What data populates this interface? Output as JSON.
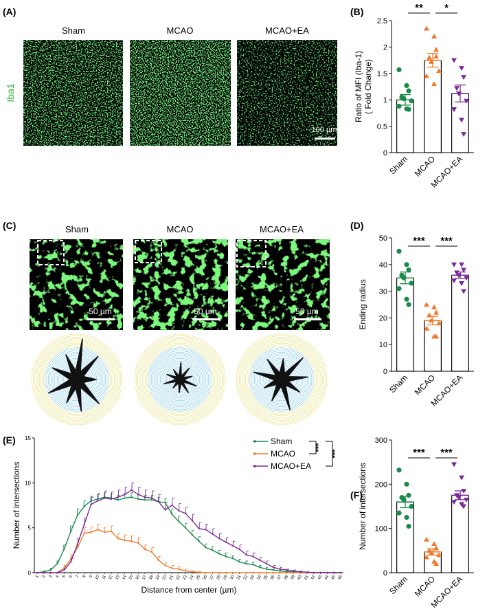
{
  "panels": {
    "A": {
      "label": "(A)",
      "columns": [
        "Sham",
        "MCAO",
        "MCAO+EA"
      ],
      "stain_label": "Iba1",
      "scale_bar": "100 µm"
    },
    "C": {
      "label": "(C)",
      "columns": [
        "Sham",
        "MCAO",
        "MCAO+EA"
      ],
      "scale_bar": "50 µm"
    }
  },
  "colors": {
    "sham": "#1a8a4a",
    "mcao": "#f07a2a",
    "mcao_ea": "#7a2a9a",
    "stain": "#2fd03a",
    "ring_outer": "#e6e07a",
    "ring_inner": "#7fc8e8"
  },
  "chart_data": [
    {
      "panel": "B",
      "label": "(B)",
      "type": "bar",
      "categories": [
        "Sham",
        "MCAO",
        "MCAO+EA"
      ],
      "values": [
        1.0,
        1.75,
        1.12
      ],
      "errors": [
        0.1,
        0.13,
        0.16
      ],
      "points": [
        [
          1.57,
          1.27,
          1.17,
          1.05,
          1.02,
          0.98,
          0.88,
          0.83,
          0.82
        ],
        [
          2.35,
          2.2,
          1.95,
          1.8,
          1.72,
          1.55,
          1.45,
          1.3,
          1.82
        ],
        [
          1.75,
          1.6,
          1.43,
          1.22,
          1.12,
          0.98,
          0.82,
          0.62,
          0.35
        ]
      ],
      "ylabel": "Ratio of MFI (Iba-1)\n( Fold Change)",
      "ylim": [
        0,
        2.5
      ],
      "yticks": [
        0,
        0.5,
        1.0,
        1.5,
        2.0,
        2.5
      ],
      "significance": [
        {
          "between": [
            "Sham",
            "MCAO"
          ],
          "text": "**"
        },
        {
          "between": [
            "MCAO",
            "MCAO+EA"
          ],
          "text": "*"
        }
      ]
    },
    {
      "panel": "D",
      "label": "(D)",
      "type": "bar",
      "categories": [
        "Sham",
        "MCAO",
        "MCAO+EA"
      ],
      "values": [
        35,
        19,
        36
      ],
      "errors": [
        2.2,
        1.6,
        1.2
      ],
      "points": [
        [
          45,
          40,
          38,
          36,
          35,
          33,
          31,
          27,
          25
        ],
        [
          25,
          24,
          22,
          21,
          19,
          18,
          16,
          13,
          13
        ],
        [
          40,
          40,
          38,
          37,
          36,
          35,
          34,
          33,
          30
        ]
      ],
      "ylabel": "Ending radius",
      "ylim": [
        0,
        50
      ],
      "yticks": [
        0,
        10,
        20,
        30,
        40,
        50
      ],
      "significance": [
        {
          "between": [
            "Sham",
            "MCAO"
          ],
          "text": "***"
        },
        {
          "between": [
            "MCAO",
            "MCAO+EA"
          ],
          "text": "***"
        }
      ]
    },
    {
      "panel": "E",
      "label": "(E)",
      "type": "line",
      "x": [
        1,
        2,
        3,
        4,
        5,
        6,
        7,
        8,
        9,
        10,
        11,
        12,
        13,
        14,
        15,
        16,
        17,
        18,
        19,
        20,
        21,
        22,
        23,
        24,
        25,
        26,
        27,
        28,
        29,
        30,
        31,
        32,
        33,
        34,
        35,
        36,
        37,
        38,
        39,
        40,
        41,
        42,
        43,
        44,
        45,
        46
      ],
      "series": [
        {
          "name": "Sham",
          "values": [
            0,
            0.1,
            0.3,
            1.0,
            2.6,
            4.6,
            6.4,
            7.4,
            8.0,
            8.2,
            8.4,
            8.3,
            8.1,
            8.3,
            8.4,
            8.2,
            8.1,
            8.1,
            7.9,
            7.8,
            6.5,
            5.7,
            5.0,
            4.2,
            3.5,
            2.8,
            2.5,
            2.1,
            1.8,
            1.6,
            1.2,
            1.0,
            0.9,
            0.6,
            0.4,
            0.3,
            0.2,
            0.1,
            0.1,
            0.05,
            0,
            0,
            0,
            0,
            0,
            0
          ],
          "errors": [
            0,
            0.1,
            0.2,
            0.3,
            0.5,
            0.6,
            0.7,
            0.6,
            0.5,
            0.5,
            0.5,
            0.5,
            0.5,
            0.5,
            0.5,
            0.5,
            0.5,
            0.5,
            0.5,
            0.5,
            0.6,
            0.6,
            0.5,
            0.5,
            0.5,
            0.4,
            0.4,
            0.4,
            0.4,
            0.3,
            0.3,
            0.3,
            0.3,
            0.2,
            0.2,
            0.1,
            0.1,
            0.1,
            0.1,
            0.05,
            0,
            0,
            0,
            0,
            0,
            0
          ]
        },
        {
          "name": "MCAO",
          "values": [
            0,
            0,
            0,
            0,
            0.5,
            1.5,
            2.8,
            4.4,
            4.5,
            4.8,
            4.5,
            4.6,
            3.8,
            3.6,
            3.5,
            3.3,
            2.6,
            2.3,
            1.4,
            0.8,
            0.5,
            0.4,
            0.2,
            0.1,
            0.05,
            0,
            0,
            0,
            0,
            0,
            0,
            0,
            0,
            0,
            0,
            0,
            0,
            0,
            0,
            0,
            0,
            0,
            0,
            0,
            0,
            0
          ],
          "errors": [
            0,
            0,
            0,
            0,
            0.3,
            0.5,
            0.6,
            0.6,
            0.6,
            0.6,
            0.6,
            0.6,
            0.6,
            0.6,
            0.6,
            0.6,
            0.5,
            0.5,
            0.4,
            0.3,
            0.3,
            0.3,
            0.2,
            0.1,
            0.05,
            0,
            0,
            0,
            0,
            0,
            0,
            0,
            0,
            0,
            0,
            0,
            0,
            0,
            0,
            0,
            0,
            0,
            0,
            0,
            0,
            0
          ]
        },
        {
          "name": "MCAO+EA",
          "values": [
            0,
            0,
            0,
            0,
            0.3,
            1.2,
            3.2,
            5.4,
            7.6,
            8.0,
            8.3,
            8.2,
            8.4,
            8.7,
            9.2,
            8.7,
            8.4,
            8.3,
            7.9,
            7.0,
            7.5,
            6.9,
            6.6,
            5.8,
            4.9,
            4.8,
            4.3,
            3.8,
            3.4,
            3.0,
            2.6,
            2.0,
            1.8,
            1.4,
            1.0,
            0.6,
            0.4,
            0.3,
            0.2,
            0.1,
            0.05,
            0,
            0,
            0,
            0,
            0
          ],
          "errors": [
            0,
            0,
            0,
            0,
            0.2,
            0.4,
            0.6,
            0.7,
            0.8,
            0.8,
            0.8,
            0.8,
            0.8,
            0.8,
            0.8,
            0.8,
            0.8,
            0.8,
            0.8,
            0.8,
            0.8,
            0.8,
            0.7,
            0.7,
            0.7,
            0.6,
            0.6,
            0.6,
            0.5,
            0.5,
            0.5,
            0.4,
            0.4,
            0.3,
            0.3,
            0.2,
            0.2,
            0.1,
            0.1,
            0.1,
            0.05,
            0,
            0,
            0,
            0,
            0
          ]
        }
      ],
      "xlabel": "Distance from center (µm)",
      "ylabel": "Number of intersections",
      "ylim": [
        0,
        15
      ],
      "yticks": [
        0,
        5,
        10,
        15
      ],
      "legend_position": "top-right",
      "significance": [
        "***",
        "***"
      ]
    },
    {
      "panel": "F",
      "label": "(F)",
      "type": "bar",
      "categories": [
        "Sham",
        "MCAO",
        "MCAO+EA"
      ],
      "values": [
        160,
        47,
        175
      ],
      "errors": [
        13,
        7,
        10
      ],
      "points": [
        [
          232,
          200,
          175,
          170,
          165,
          150,
          135,
          125,
          105
        ],
        [
          75,
          65,
          55,
          50,
          45,
          40,
          35,
          25,
          20
        ],
        [
          245,
          215,
          185,
          175,
          170,
          165,
          160,
          155,
          150
        ]
      ],
      "ylabel": "Number of intersections",
      "ylim": [
        0,
        300
      ],
      "yticks": [
        0,
        100,
        200,
        300
      ],
      "significance": [
        {
          "between": [
            "Sham",
            "MCAO"
          ],
          "text": "***"
        },
        {
          "between": [
            "MCAO",
            "MCAO+EA"
          ],
          "text": "***"
        }
      ]
    }
  ]
}
